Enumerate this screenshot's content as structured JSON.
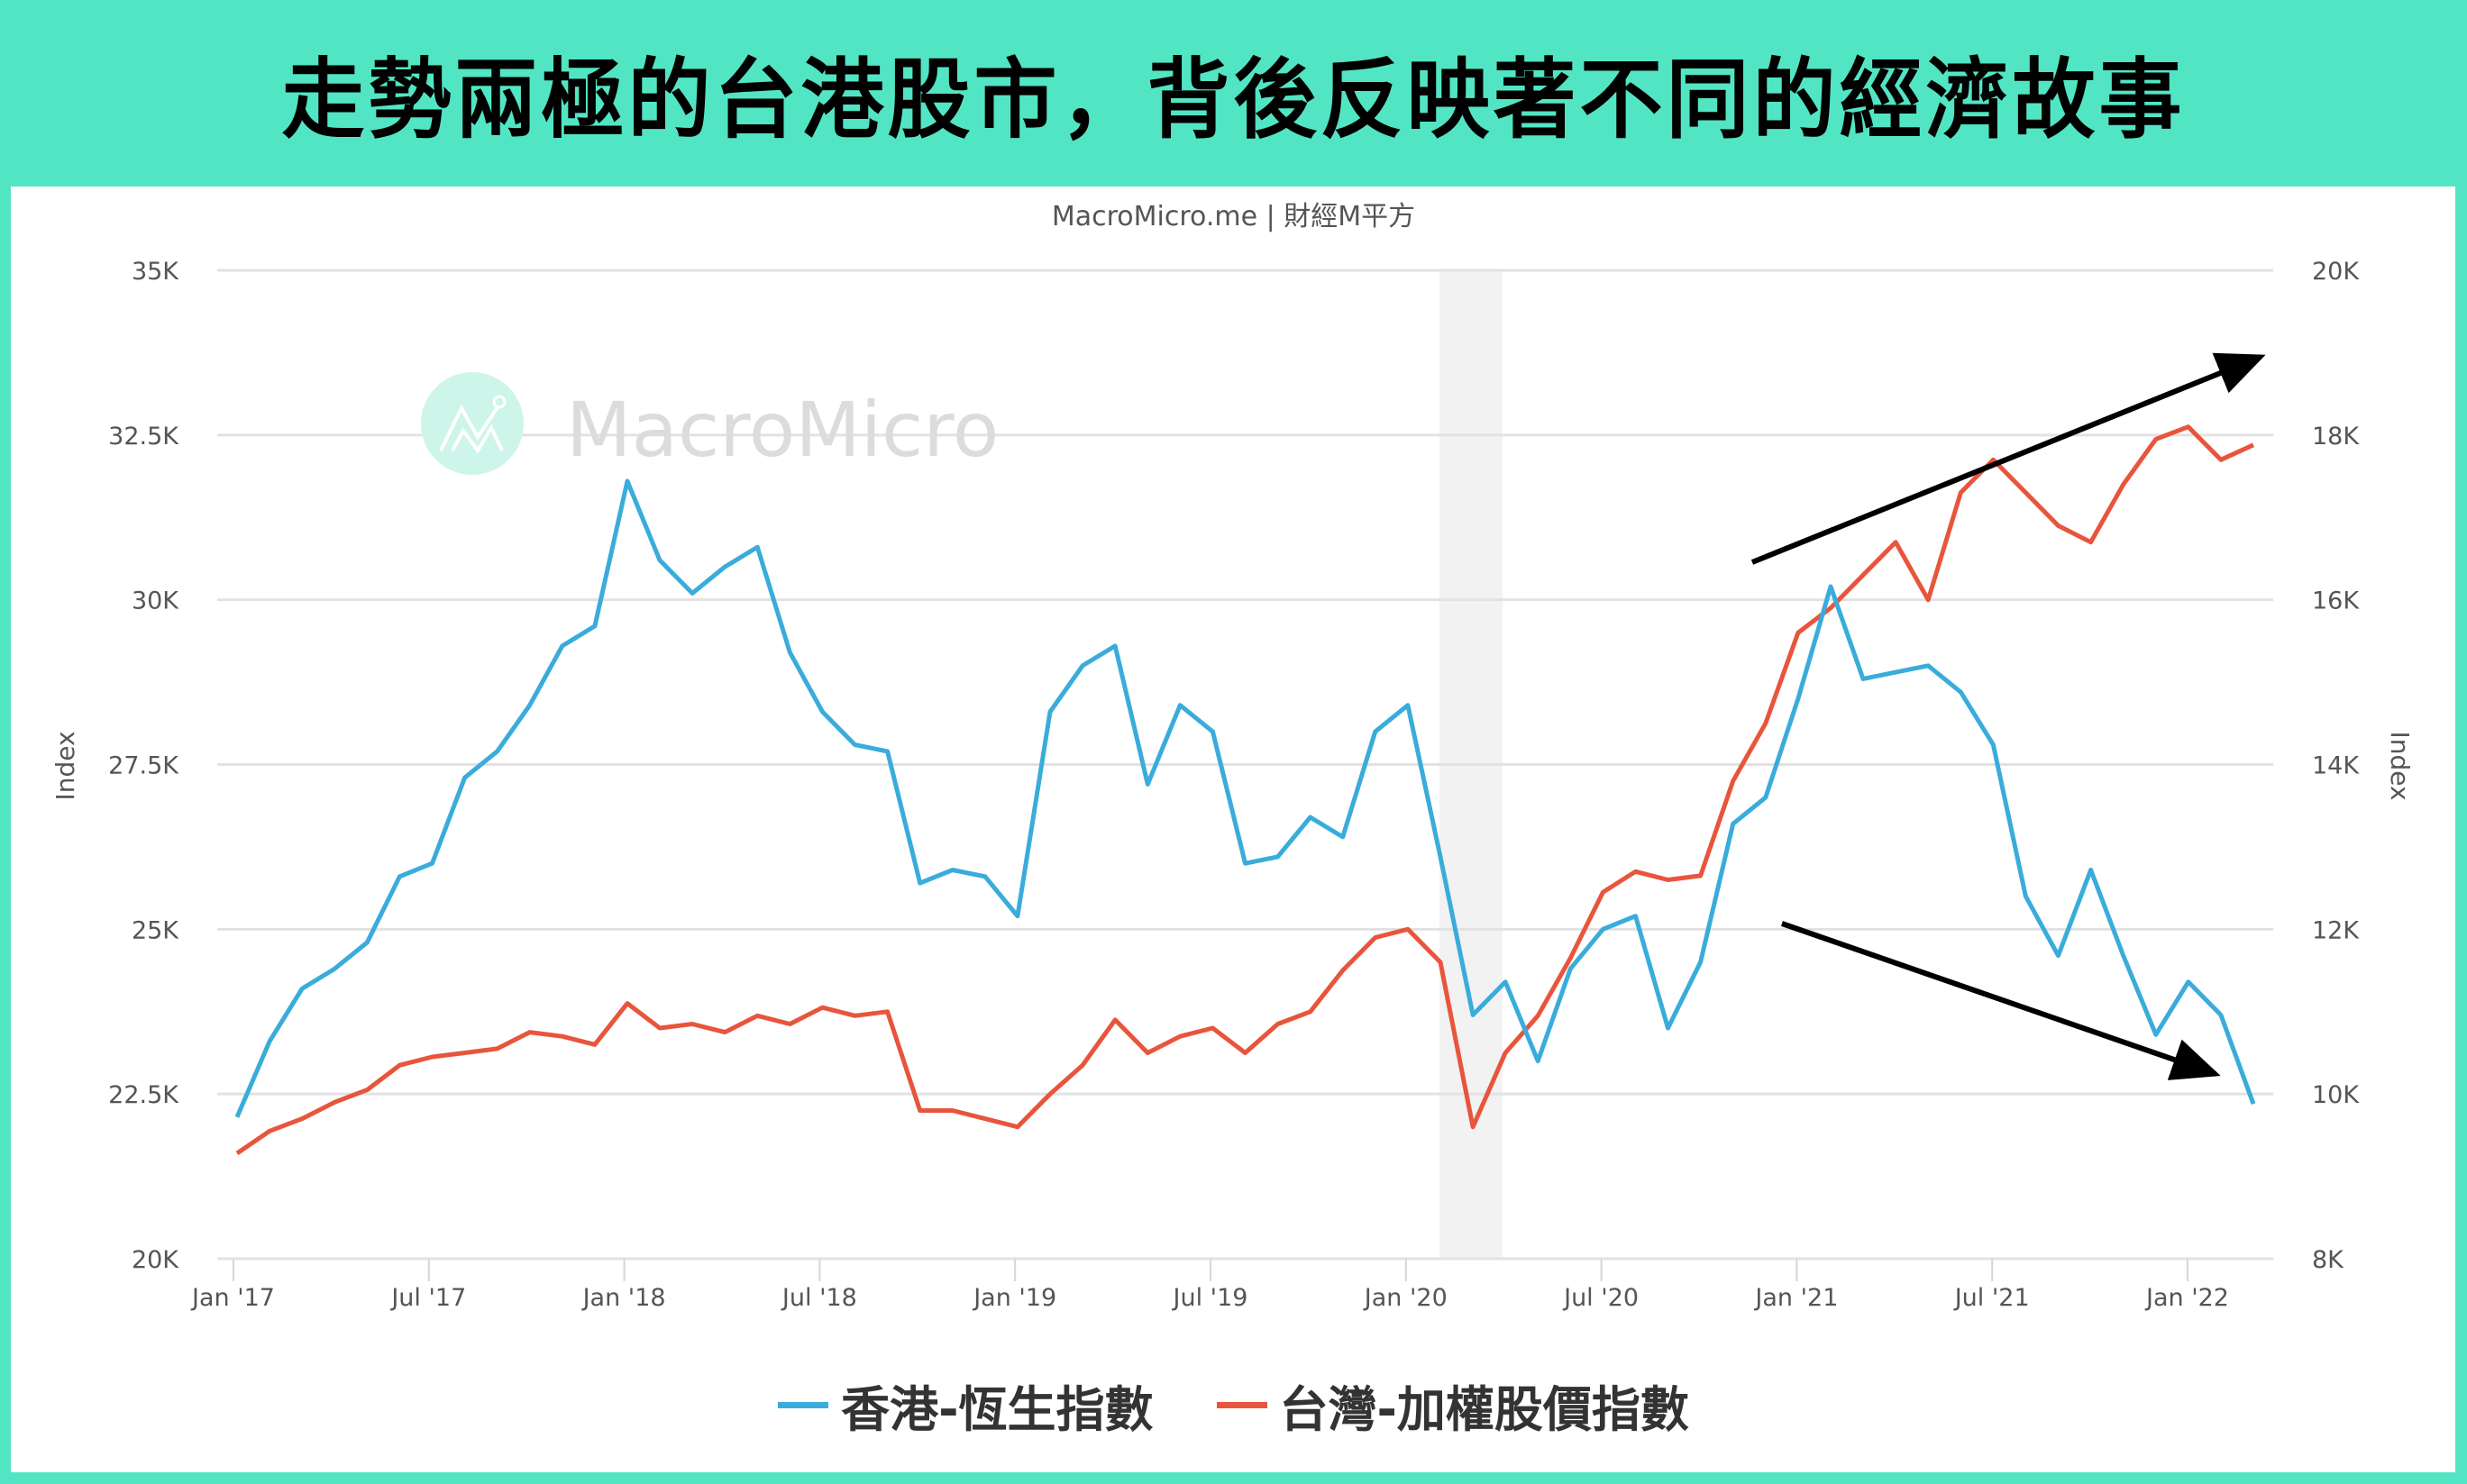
{
  "header": {
    "title": "走勢兩極的台港股市，背後反映著不同的經濟故事",
    "background_color": "#52e5c4"
  },
  "chart_credit": "MacroMicro.me | 財經M平方",
  "watermark": {
    "text": "MacroMicro",
    "icon": "macromicro-logo-icon"
  },
  "colors": {
    "hk": "#3aacdb",
    "tw": "#e8553c",
    "grid": "#e2e2e2",
    "shade": "#f2f2f2",
    "annotation": "#000000"
  },
  "legend": [
    {
      "label": "香港-恆生指數",
      "color": "#3aacdb"
    },
    {
      "label": "台灣-加權股價指數",
      "color": "#e8553c"
    }
  ],
  "chart_data": {
    "type": "line",
    "title": "走勢兩極的台港股市，背後反映著不同的經濟故事",
    "subtitle": "MacroMicro.me | 財經M平方",
    "xlabel": "",
    "ylabel": "Index",
    "ylabel_right": "Index",
    "x_ticks": [
      "Jan '17",
      "Jul '17",
      "Jan '18",
      "Jul '18",
      "Jan '19",
      "Jul '19",
      "Jan '20",
      "Jul '20",
      "Jan '21",
      "Jul '21",
      "Jan '22"
    ],
    "y_left": {
      "ticks": [
        "20K",
        "22.5K",
        "25K",
        "27.5K",
        "30K",
        "32.5K",
        "35K"
      ],
      "range": [
        20000,
        35000
      ]
    },
    "y_right": {
      "ticks": [
        "8K",
        "10K",
        "12K",
        "14K",
        "16K",
        "18K",
        "20K"
      ],
      "range": [
        8000,
        20000
      ]
    },
    "grid": true,
    "legend_position": "bottom",
    "shaded_region": {
      "from": "2020-02",
      "to": "2020-04"
    },
    "annotations": [
      {
        "type": "arrow",
        "direction": "up",
        "note": "Taiwan uptrend"
      },
      {
        "type": "arrow",
        "direction": "down",
        "note": "Hong Kong downtrend"
      }
    ],
    "x": [
      "2017-01",
      "2017-02",
      "2017-03",
      "2017-04",
      "2017-05",
      "2017-06",
      "2017-07",
      "2017-08",
      "2017-09",
      "2017-10",
      "2017-11",
      "2017-12",
      "2018-01",
      "2018-02",
      "2018-03",
      "2018-04",
      "2018-05",
      "2018-06",
      "2018-07",
      "2018-08",
      "2018-09",
      "2018-10",
      "2018-11",
      "2018-12",
      "2019-01",
      "2019-02",
      "2019-03",
      "2019-04",
      "2019-05",
      "2019-06",
      "2019-07",
      "2019-08",
      "2019-09",
      "2019-10",
      "2019-11",
      "2019-12",
      "2020-01",
      "2020-02",
      "2020-03",
      "2020-04",
      "2020-05",
      "2020-06",
      "2020-07",
      "2020-08",
      "2020-09",
      "2020-10",
      "2020-11",
      "2020-12",
      "2021-01",
      "2021-02",
      "2021-03",
      "2021-04",
      "2021-05",
      "2021-06",
      "2021-07",
      "2021-08",
      "2021-09",
      "2021-10",
      "2021-11",
      "2021-12",
      "2022-01",
      "2022-02",
      "2022-03"
    ],
    "series": [
      {
        "name": "香港-恆生指數",
        "axis": "left",
        "color": "#3aacdb",
        "values": [
          22150,
          23300,
          24100,
          24400,
          24800,
          25800,
          26000,
          27300,
          27700,
          28400,
          29300,
          29600,
          31800,
          30600,
          30100,
          30500,
          30800,
          29200,
          28300,
          27800,
          27700,
          25700,
          25900,
          25800,
          25200,
          28300,
          29000,
          29300,
          27200,
          28400,
          28000,
          26000,
          26100,
          26700,
          26400,
          28000,
          28400,
          26100,
          23700,
          24200,
          23000,
          24400,
          25000,
          25200,
          23500,
          24500,
          26600,
          27000,
          28500,
          30200,
          28800,
          28900,
          29000,
          28600,
          27800,
          25500,
          24600,
          25900,
          24600,
          23400,
          24200,
          23700,
          22350
        ]
      },
      {
        "name": "台灣-加權股價指數",
        "axis": "right",
        "color": "#e8553c",
        "values": [
          9280,
          9550,
          9700,
          9900,
          10050,
          10350,
          10450,
          10500,
          10550,
          10750,
          10700,
          10600,
          11100,
          10800,
          10850,
          10750,
          10950,
          10850,
          11050,
          10950,
          11000,
          9800,
          9800,
          9700,
          9600,
          10000,
          10350,
          10900,
          10500,
          10700,
          10800,
          10500,
          10850,
          11000,
          11500,
          11900,
          12000,
          11600,
          9600,
          10500,
          10950,
          11650,
          12450,
          12700,
          12600,
          12650,
          13800,
          14500,
          15600,
          15900,
          16300,
          16700,
          16000,
          17300,
          17700,
          17300,
          16900,
          16700,
          17400,
          17950,
          18100,
          17700,
          17880
        ]
      }
    ]
  }
}
